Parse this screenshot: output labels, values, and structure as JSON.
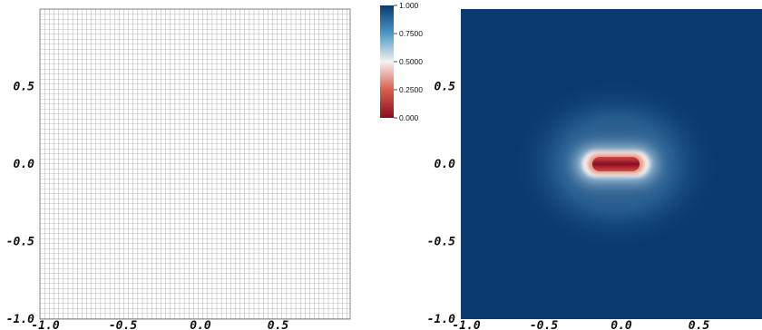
{
  "chart_data": [
    {
      "type": "mesh",
      "title": "",
      "xlabel": "",
      "ylabel": "",
      "xlim": [
        -1.0,
        1.0
      ],
      "ylim": [
        -1.0,
        1.0
      ],
      "x_ticks": [
        "-1.0",
        "-0.5",
        "0.0",
        "0.5"
      ],
      "y_ticks": [
        "-1.0",
        "-0.5",
        "0.0",
        "0.5"
      ],
      "mesh_cells": [
        64,
        64
      ],
      "grid": true
    },
    {
      "type": "heatmap",
      "title": "",
      "xlabel": "",
      "ylabel": "",
      "xlim": [
        -1.0,
        1.0
      ],
      "ylim": [
        -1.0,
        1.0
      ],
      "x_ticks": [
        "-1.0",
        "-0.5",
        "0.0",
        "0.5"
      ],
      "y_ticks": [
        "-1.0",
        "-0.5",
        "0.0",
        "0.5"
      ],
      "value_range": [
        0.0,
        1.0
      ],
      "colormap": "blue-white-red (diverging)",
      "background_value": 1.0,
      "feature": {
        "shape": "horizontal capsule (slot) centered at origin",
        "center": [
          0.0,
          0.0
        ],
        "x_extent": [
          -0.12,
          0.12
        ],
        "y_extent": [
          -0.03,
          0.03
        ],
        "min_value": 0.0
      },
      "colorbar": {
        "ticks": [
          "1.000",
          "0.7500",
          "0.5000",
          "0.2500",
          "0.000"
        ],
        "colors": [
          "#0b3b6e",
          "#4a98c9",
          "#f4f2f1",
          "#d6604d",
          "#8a0d20"
        ]
      }
    }
  ]
}
